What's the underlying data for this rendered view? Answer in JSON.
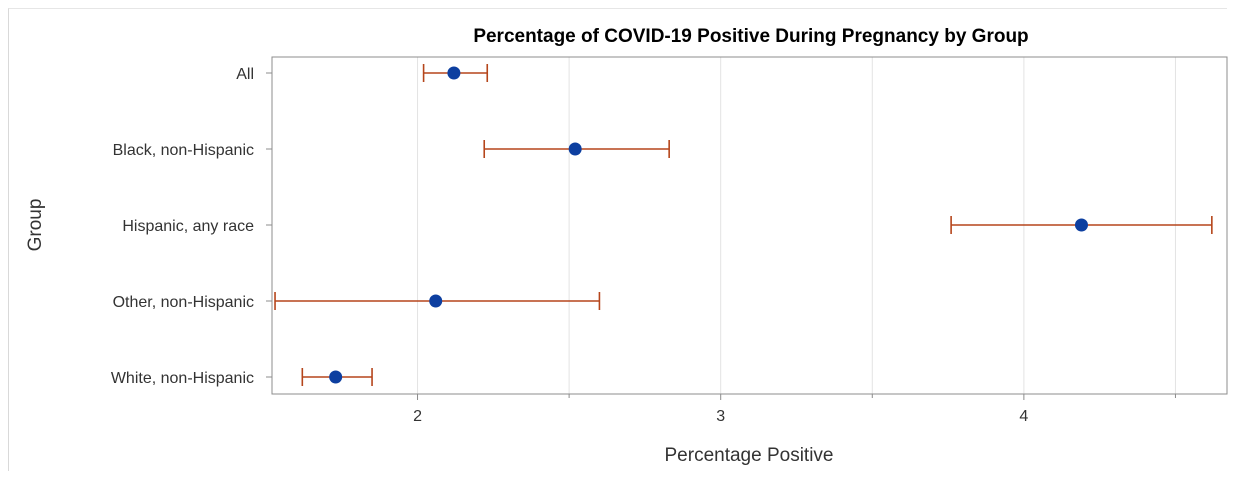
{
  "chart_data": {
    "type": "scatter",
    "title": "Percentage of COVID-19 Positive During Pregnancy by Group",
    "xlabel": "Percentage Positive",
    "ylabel": "Group",
    "xlim": [
      1.52,
      4.67
    ],
    "xticks": [
      2,
      3,
      4
    ],
    "xtick_labels": [
      "2",
      "3",
      "4"
    ],
    "minor_gridlines": [
      2.5,
      3.5,
      4.5
    ],
    "grid": true,
    "categories": [
      "All",
      "Black, non-Hispanic",
      "Hispanic, any race",
      "Other, non-Hispanic",
      "White, non-Hispanic"
    ],
    "series": [
      {
        "values": [
          2.12,
          2.52,
          4.19,
          2.06,
          1.73
        ],
        "lower": [
          2.02,
          2.22,
          3.76,
          1.53,
          1.62
        ],
        "upper": [
          2.23,
          2.83,
          4.62,
          2.6,
          1.85
        ]
      }
    ],
    "colors": {
      "point": "#0d3fa0",
      "errorbar": "#b5451b",
      "grid": "#e3e3e3",
      "frame": "#8c8c8c"
    }
  }
}
